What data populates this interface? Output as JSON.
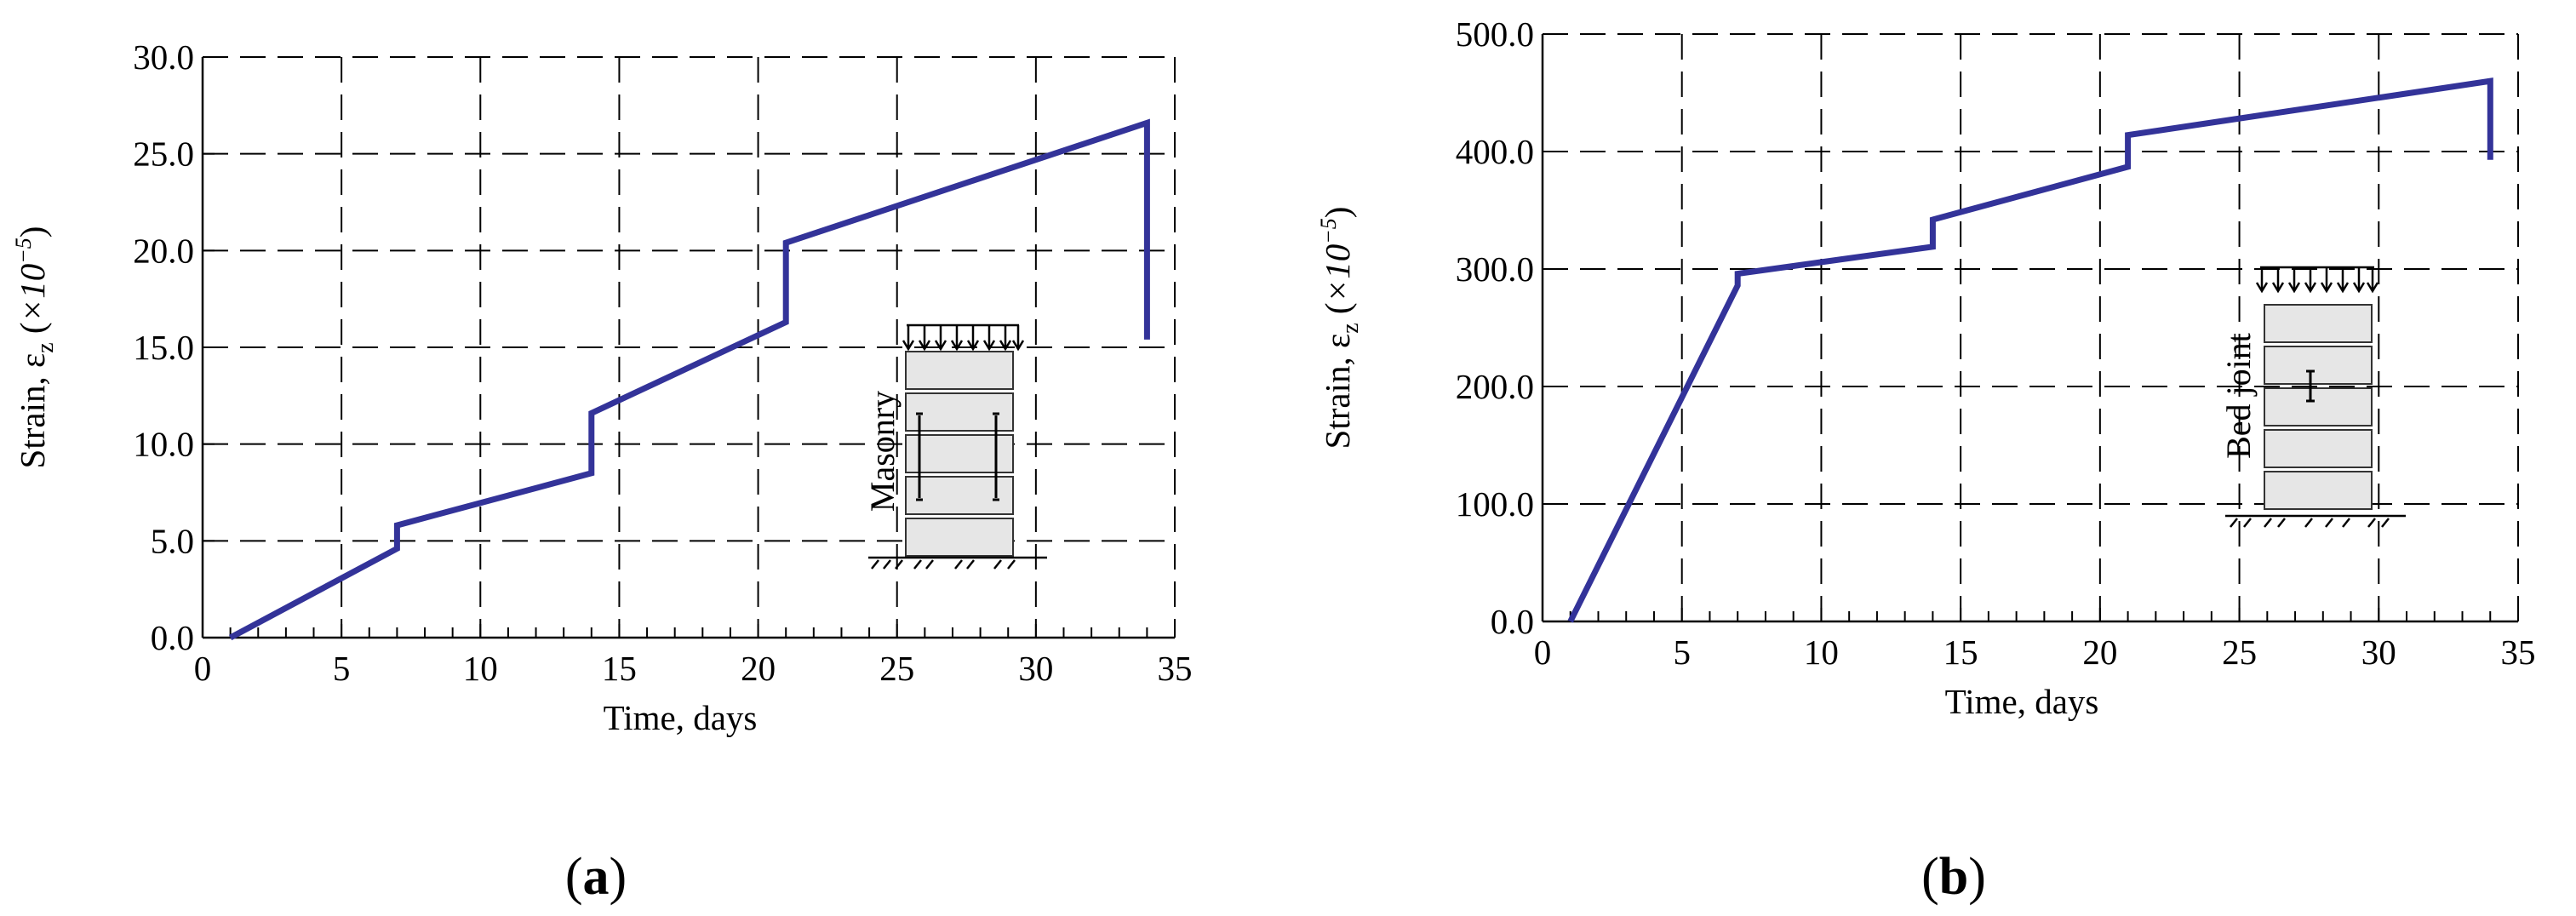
{
  "figure": {
    "panels": [
      {
        "label_open": "(",
        "label_letter": "a",
        "label_close": ")",
        "inset_text": "Masonry"
      },
      {
        "label_open": "(",
        "label_letter": "b",
        "label_close": ")",
        "inset_text": "Bed joint"
      }
    ]
  },
  "chart_data": [
    {
      "type": "line",
      "xlabel": "Time, days",
      "ylabel_prefix": "Strain, ε",
      "ylabel_sub": "z",
      "ylabel_paren_open": " (",
      "ylabel_times": "×10",
      "ylabel_exp": "−5",
      "ylabel_paren_close": ")",
      "xlim": [
        0,
        35
      ],
      "ylim": [
        0,
        30
      ],
      "xticks": [
        0,
        5,
        10,
        15,
        20,
        25,
        30,
        35
      ],
      "xtick_labels": [
        "0",
        "5",
        "10",
        "15",
        "20",
        "25",
        "30",
        "35"
      ],
      "yticks": [
        0,
        5,
        10,
        15,
        20,
        25,
        30
      ],
      "ytick_labels": [
        "0.0",
        "5.0",
        "10.0",
        "15.0",
        "20.0",
        "25.0",
        "30.0"
      ],
      "grid": "dashed",
      "color": "#333399",
      "series": [
        {
          "x": [
            1,
            7,
            7,
            14,
            14,
            21,
            21,
            34,
            34
          ],
          "y": [
            0.0,
            4.6,
            5.8,
            8.5,
            11.6,
            16.3,
            20.4,
            26.6,
            15.4
          ]
        }
      ]
    },
    {
      "type": "line",
      "xlabel": "Time, days",
      "ylabel_prefix": "Strain, ε",
      "ylabel_sub": "z",
      "ylabel_paren_open": " (",
      "ylabel_times": "×10",
      "ylabel_exp": "−5",
      "ylabel_paren_close": ")",
      "xlim": [
        0,
        35
      ],
      "ylim": [
        0,
        500
      ],
      "xticks": [
        0,
        5,
        10,
        15,
        20,
        25,
        30,
        35
      ],
      "xtick_labels": [
        "0",
        "5",
        "10",
        "15",
        "20",
        "25",
        "30",
        "35"
      ],
      "yticks": [
        0,
        100,
        200,
        300,
        400,
        500
      ],
      "ytick_labels": [
        "0.0",
        "100.0",
        "200.0",
        "300.0",
        "400.0",
        "500.0"
      ],
      "grid": "dashed",
      "color": "#333399",
      "series": [
        {
          "x": [
            1,
            7,
            7,
            14,
            14,
            21,
            21,
            34,
            34
          ],
          "y": [
            0,
            286,
            296,
            319,
            342,
            387,
            414,
            460,
            393
          ]
        }
      ]
    }
  ]
}
